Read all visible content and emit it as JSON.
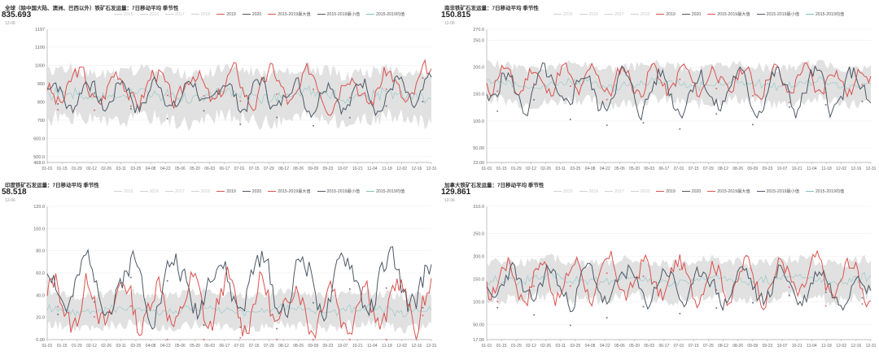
{
  "colors": {
    "y2019": "#d9534f",
    "y2020": "#4d5866",
    "max": "#d9534f",
    "min": "#4d5866",
    "avg": "#7fbfbf",
    "band": "#dcdcdc",
    "faded": "#d0d0d0"
  },
  "legend_labels": [
    "2015",
    "2016",
    "2017",
    "2018",
    "2019",
    "2020",
    "2015-2019最大值",
    "2015-2019最小值",
    "2015-2019均值"
  ],
  "x_ticks": [
    "01-01",
    "01-15",
    "01-29",
    "02-12",
    "02-26",
    "03-11",
    "03-25",
    "04-08",
    "04-22",
    "05-06",
    "05-20",
    "06-03",
    "06-17",
    "07-01",
    "07-15",
    "07-29",
    "08-12",
    "08-26",
    "09-09",
    "09-23",
    "10-07",
    "10-21",
    "11-04",
    "11-18",
    "12-02",
    "12-16",
    "12-31"
  ],
  "chart_data": [
    {
      "type": "line",
      "title": "全球（除中国大陆、澳洲、巴西以外）铁矿石发运量：7日移动平均 季节性",
      "last_value": "835.693",
      "date": "12-06",
      "y_ticks": [
        "1197",
        "1100",
        "1000",
        "900",
        "800",
        "700",
        "600.0",
        "500.0",
        "468.0"
      ],
      "ylim": [
        468,
        1197
      ],
      "series": [
        {
          "name": "2019",
          "base": 880,
          "amp": 120,
          "seed": 3,
          "period": 9
        },
        {
          "name": "2020",
          "base": 840,
          "amp": 110,
          "seed": 7,
          "period": 8
        }
      ],
      "band": {
        "low": 640,
        "high": 1000,
        "avg": 820
      }
    },
    {
      "type": "line",
      "title": "南非铁矿石发运量：7日移动平均 季节性",
      "last_value": "150.815",
      "date": "12-06",
      "y_ticks": [
        "270.0",
        "250.0",
        "200.0",
        "150.0",
        "100.0",
        "50.00",
        "23.00"
      ],
      "ylim": [
        23,
        270
      ],
      "series": [
        {
          "name": "2019",
          "base": 175,
          "amp": 35,
          "seed": 11,
          "period": 7
        },
        {
          "name": "2020",
          "base": 155,
          "amp": 45,
          "seed": 5,
          "period": 9
        }
      ],
      "band": {
        "low": 120,
        "high": 210,
        "avg": 168
      }
    },
    {
      "type": "line",
      "title": "印度铁矿石发运量：7日移动平均 季节性",
      "last_value": "58.518",
      "date": "12-06",
      "y_ticks": [
        "120.0",
        "100.0",
        "80.0",
        "60.0",
        "40.0",
        "20.0",
        "0.00"
      ],
      "ylim": [
        0,
        120
      ],
      "series": [
        {
          "name": "2019",
          "base": 32,
          "amp": 30,
          "seed": 13,
          "period": 8
        },
        {
          "name": "2020",
          "base": 50,
          "amp": 30,
          "seed": 2,
          "period": 10
        }
      ],
      "band": {
        "low": 5,
        "high": 45,
        "avg": 22
      }
    },
    {
      "type": "line",
      "title": "加拿大铁矿石发运量：7日移动平均 季节性",
      "last_value": "129.861",
      "date": "12-06",
      "y_ticks": [
        "310.0",
        "250.0",
        "200.0",
        "150.0",
        "100.0",
        "50.00",
        "17.00"
      ],
      "ylim": [
        17,
        310
      ],
      "series": [
        {
          "name": "2019",
          "base": 150,
          "amp": 55,
          "seed": 17,
          "period": 8
        },
        {
          "name": "2020",
          "base": 135,
          "amp": 50,
          "seed": 23,
          "period": 9
        }
      ],
      "band": {
        "low": 90,
        "high": 200,
        "avg": 145
      }
    }
  ]
}
